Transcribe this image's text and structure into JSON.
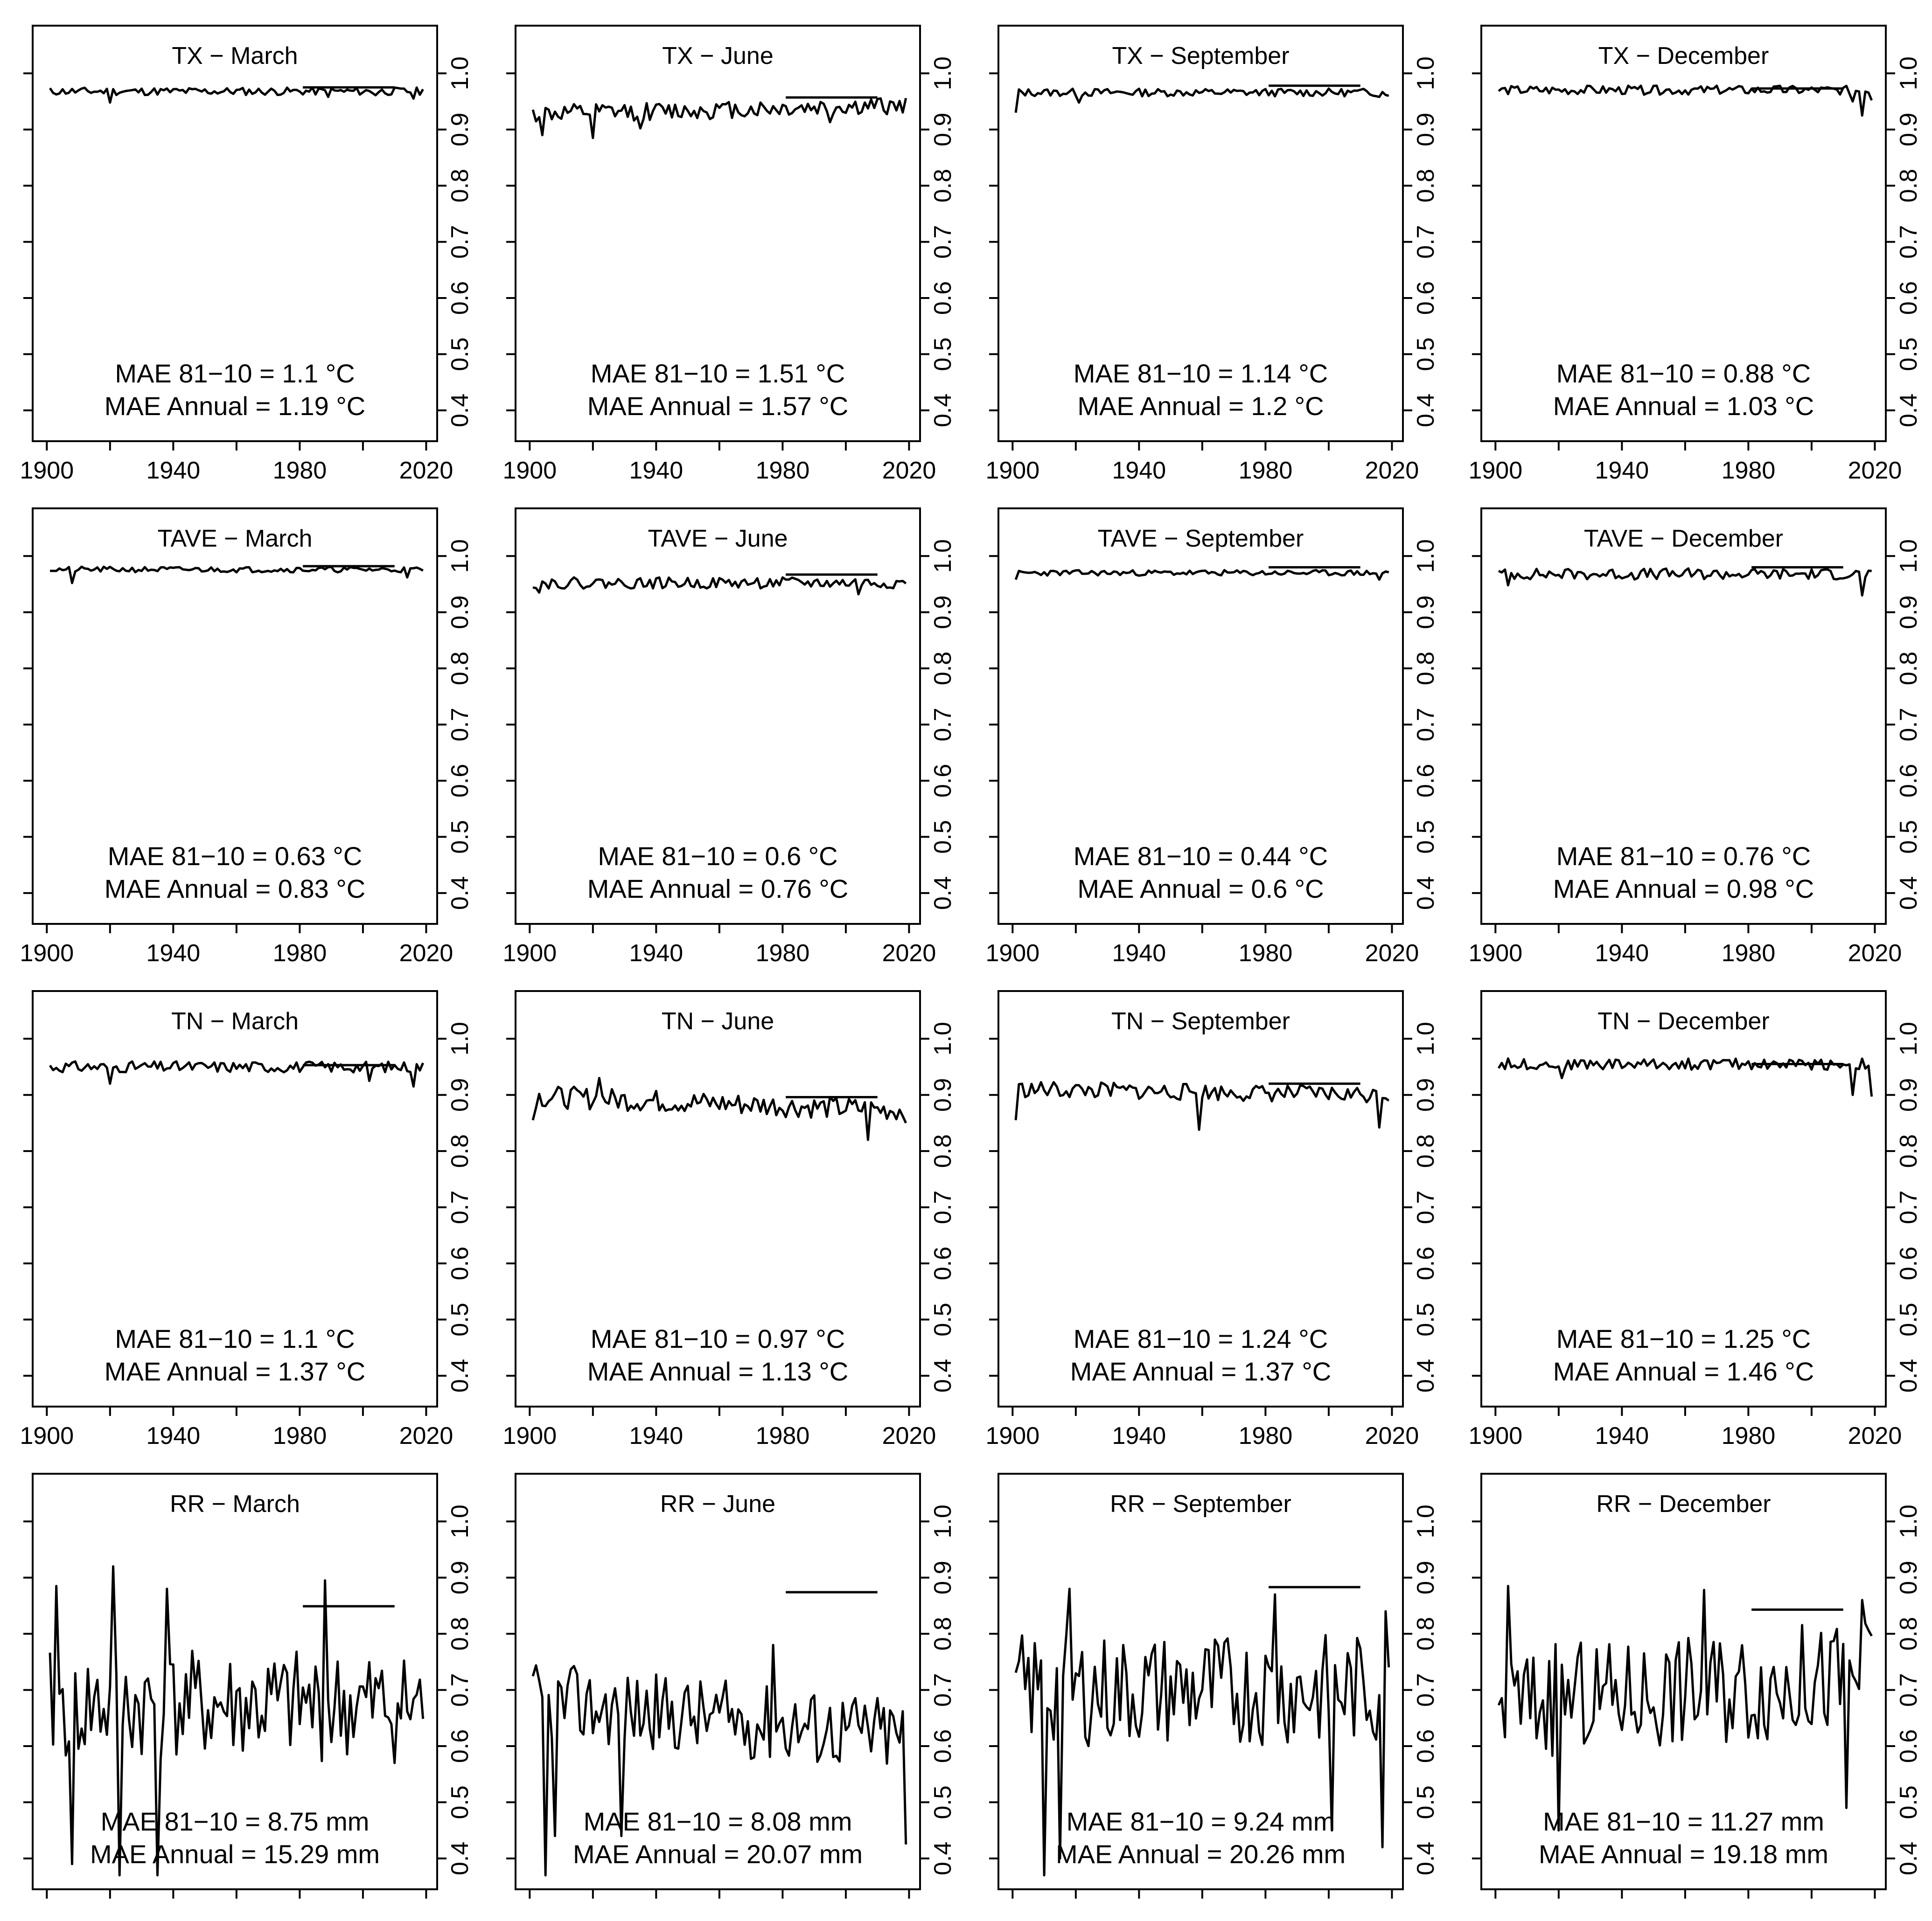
{
  "axes": {
    "x_ticks": [
      1900,
      1940,
      1980,
      2020
    ],
    "y_ticks": [
      0.4,
      0.5,
      0.6,
      0.7,
      0.8,
      0.9,
      1.0
    ],
    "y_tick_labels": [
      "0.4",
      "0.5",
      "0.6",
      "0.7",
      "0.8",
      "0.9",
      "1.0"
    ],
    "xlim": [
      1897,
      2022
    ],
    "ylim": [
      0.37,
      1.06
    ]
  },
  "chart_data": [
    {
      "type": "line",
      "title": "TX − March",
      "mae_8110": "MAE 81−10 = 1.1 °C",
      "mae_annual": "MAE Annual = 1.19 °C",
      "baseline": {
        "x": [
          1981,
          2010
        ],
        "y": 0.975
      },
      "series": [
        {
          "x": [
            1901,
            2019
          ],
          "base": 0.968,
          "amp": 0.007,
          "dips": [
            [
              1920,
              0.948
            ],
            [
              1989,
              0.958
            ],
            [
              2004,
              0.961
            ],
            [
              2016,
              0.955
            ]
          ],
          "seed": 11
        }
      ]
    },
    {
      "type": "line",
      "title": "TX − June",
      "mae_8110": "MAE 81−10 = 1.51 °C",
      "mae_annual": "MAE Annual = 1.57 °C",
      "baseline": {
        "x": [
          1981,
          2010
        ],
        "y": 0.957
      },
      "series": [
        {
          "x": [
            1901,
            2019
          ],
          "base": 0.935,
          "amp": 0.016,
          "trend": 0.015,
          "dips": [
            [
              1904,
              0.89
            ],
            [
              1920,
              0.885
            ],
            [
              1935,
              0.902
            ],
            [
              1995,
              0.913
            ]
          ],
          "seed": 12
        }
      ]
    },
    {
      "type": "line",
      "title": "TX − September",
      "mae_8110": "MAE 81−10 = 1.14 °C",
      "mae_annual": "MAE Annual = 1.2 °C",
      "baseline": {
        "x": [
          1981,
          2010
        ],
        "y": 0.978
      },
      "series": [
        {
          "x": [
            1901,
            2019
          ],
          "base": 0.966,
          "amp": 0.007,
          "dips": [
            [
              1901,
              0.93
            ],
            [
              1921,
              0.948
            ],
            [
              2016,
              0.958
            ]
          ],
          "seed": 13
        }
      ]
    },
    {
      "type": "line",
      "title": "TX − December",
      "mae_8110": "MAE 81−10 = 0.88 °C",
      "mae_annual": "MAE Annual = 1.03 °C",
      "baseline": {
        "x": [
          1981,
          2010
        ],
        "y": 0.973
      },
      "series": [
        {
          "x": [
            1901,
            2019
          ],
          "base": 0.97,
          "amp": 0.008,
          "dips": [
            [
              2016,
              0.925
            ],
            [
              2013,
              0.95
            ],
            [
              2019,
              0.952
            ]
          ],
          "seed": 14
        }
      ]
    },
    {
      "type": "line",
      "title": "TAVE − March",
      "mae_8110": "MAE 81−10 = 0.63 °C",
      "mae_annual": "MAE Annual = 0.83 °C",
      "baseline": {
        "x": [
          1981,
          2010
        ],
        "y": 0.982
      },
      "series": [
        {
          "x": [
            1901,
            2019
          ],
          "base": 0.976,
          "amp": 0.005,
          "dips": [
            [
              1908,
              0.952
            ],
            [
              2014,
              0.962
            ]
          ],
          "seed": 21
        }
      ]
    },
    {
      "type": "line",
      "title": "TAVE − June",
      "mae_8110": "MAE 81−10 = 0.6 °C",
      "mae_annual": "MAE Annual = 0.76 °C",
      "baseline": {
        "x": [
          1981,
          2010
        ],
        "y": 0.967
      },
      "series": [
        {
          "x": [
            1901,
            2019
          ],
          "base": 0.952,
          "amp": 0.01,
          "dips": [
            [
              1903,
              0.935
            ],
            [
              2004,
              0.932
            ]
          ],
          "seed": 22
        }
      ]
    },
    {
      "type": "line",
      "title": "TAVE − September",
      "mae_8110": "MAE 81−10 = 0.44 °C",
      "mae_annual": "MAE Annual = 0.6 °C",
      "baseline": {
        "x": [
          1981,
          2010
        ],
        "y": 0.98
      },
      "series": [
        {
          "x": [
            1901,
            2019
          ],
          "base": 0.97,
          "amp": 0.005,
          "dips": [
            [
              1901,
              0.958
            ],
            [
              2016,
              0.958
            ]
          ],
          "seed": 23
        }
      ]
    },
    {
      "type": "line",
      "title": "TAVE − December",
      "mae_8110": "MAE 81−10 = 0.76 °C",
      "mae_annual": "MAE Annual = 0.98 °C",
      "baseline": {
        "x": [
          1981,
          2010
        ],
        "y": 0.98
      },
      "series": [
        {
          "x": [
            1901,
            2019
          ],
          "base": 0.968,
          "amp": 0.01,
          "dips": [
            [
              1904,
              0.948
            ],
            [
              2016,
              0.93
            ]
          ],
          "seed": 24
        }
      ]
    },
    {
      "type": "line",
      "title": "TN − March",
      "mae_8110": "MAE 81−10 = 1.1 °C",
      "mae_annual": "MAE Annual = 1.37 °C",
      "baseline": {
        "x": [
          1981,
          2010
        ],
        "y": 0.953
      },
      "series": [
        {
          "x": [
            1901,
            2019
          ],
          "base": 0.95,
          "amp": 0.01,
          "dips": [
            [
              1920,
              0.92
            ],
            [
              2002,
              0.925
            ],
            [
              2016,
              0.915
            ]
          ],
          "seed": 31
        }
      ]
    },
    {
      "type": "line",
      "title": "TN − June",
      "mae_8110": "MAE 81−10 = 0.97 °C",
      "mae_annual": "MAE Annual = 1.13 °C",
      "baseline": {
        "x": [
          1981,
          2010
        ],
        "y": 0.896
      },
      "series": [
        {
          "x": [
            1901,
            2019
          ],
          "base": 0.885,
          "amp": 0.02,
          "trend": -0.025,
          "dips": [
            [
              1901,
              0.855
            ],
            [
              2007,
              0.82
            ],
            [
              1922,
              0.93
            ],
            [
              2019,
              0.85
            ]
          ],
          "seed": 32
        }
      ]
    },
    {
      "type": "line",
      "title": "TN − September",
      "mae_8110": "MAE 81−10 = 1.24 °C",
      "mae_annual": "MAE Annual = 1.37 °C",
      "baseline": {
        "x": [
          1981,
          2010
        ],
        "y": 0.92
      },
      "series": [
        {
          "x": [
            1901,
            2019
          ],
          "base": 0.905,
          "amp": 0.015,
          "trend": -0.01,
          "dips": [
            [
              1901,
              0.855
            ],
            [
              1959,
              0.838
            ],
            [
              2016,
              0.842
            ]
          ],
          "seed": 33
        }
      ]
    },
    {
      "type": "line",
      "title": "TN − December",
      "mae_8110": "MAE 81−10 = 1.25 °C",
      "mae_annual": "MAE Annual = 1.46 °C",
      "baseline": {
        "x": [
          1981,
          2010
        ],
        "y": 0.955
      },
      "series": [
        {
          "x": [
            1901,
            2019
          ],
          "base": 0.955,
          "amp": 0.01,
          "dips": [
            [
              2013,
              0.9
            ],
            [
              2019,
              0.897
            ],
            [
              1921,
              0.93
            ]
          ],
          "seed": 34
        }
      ]
    },
    {
      "type": "line",
      "title": "RR − March",
      "mae_8110": "MAE 81−10 = 8.75 mm",
      "mae_annual": "MAE Annual = 15.29 mm",
      "baseline": {
        "x": [
          1981,
          2010
        ],
        "y": 0.849
      },
      "series": [
        {
          "x": [
            1901,
            2019
          ],
          "base": 0.67,
          "amp": 0.1,
          "dips": [
            [
              1921,
              0.92
            ],
            [
              1903,
              0.885
            ],
            [
              1908,
              0.39
            ],
            [
              1923,
              0.37
            ],
            [
              1935,
              0.37
            ],
            [
              1988,
              0.895
            ],
            [
              1938,
              0.88
            ]
          ],
          "seed": 41
        }
      ]
    },
    {
      "type": "line",
      "title": "RR − June",
      "mae_8110": "MAE 81−10 = 8.08 mm",
      "mae_annual": "MAE Annual = 20.07 mm",
      "baseline": {
        "x": [
          1981,
          2010
        ],
        "y": 0.874
      },
      "series": [
        {
          "x": [
            1901,
            2019
          ],
          "base": 0.65,
          "amp": 0.07,
          "trend": -0.06,
          "dips": [
            [
              1905,
              0.37
            ],
            [
              1908,
              0.44
            ],
            [
              1929,
              0.44
            ],
            [
              1977,
              0.78
            ],
            [
              2019,
              0.425
            ]
          ],
          "seed": 42
        }
      ]
    },
    {
      "type": "line",
      "title": "RR − September",
      "mae_8110": "MAE 81−10 = 9.24 mm",
      "mae_annual": "MAE Annual = 20.26 mm",
      "baseline": {
        "x": [
          1981,
          2010
        ],
        "y": 0.883
      },
      "series": [
        {
          "x": [
            1901,
            2019
          ],
          "base": 0.7,
          "amp": 0.1,
          "dips": [
            [
              1910,
              0.37
            ],
            [
              1915,
              0.4
            ],
            [
              1918,
              0.88
            ],
            [
              2001,
              0.45
            ],
            [
              2017,
              0.42
            ],
            [
              2018,
              0.84
            ],
            [
              1983,
              0.87
            ]
          ],
          "seed": 43
        }
      ]
    },
    {
      "type": "line",
      "title": "RR − December",
      "mae_8110": "MAE 81−10 = 11.27 mm",
      "mae_annual": "MAE Annual = 19.18 mm",
      "baseline": {
        "x": [
          1981,
          2010
        ],
        "y": 0.843
      },
      "series": [
        {
          "x": [
            1901,
            2019
          ],
          "base": 0.7,
          "amp": 0.1,
          "trend": 0.05,
          "dips": [
            [
              1904,
              0.885
            ],
            [
              1920,
              0.45
            ],
            [
              1966,
              0.878
            ],
            [
              2011,
              0.49
            ],
            [
              2016,
              0.86
            ]
          ],
          "seed": 44
        }
      ]
    }
  ]
}
